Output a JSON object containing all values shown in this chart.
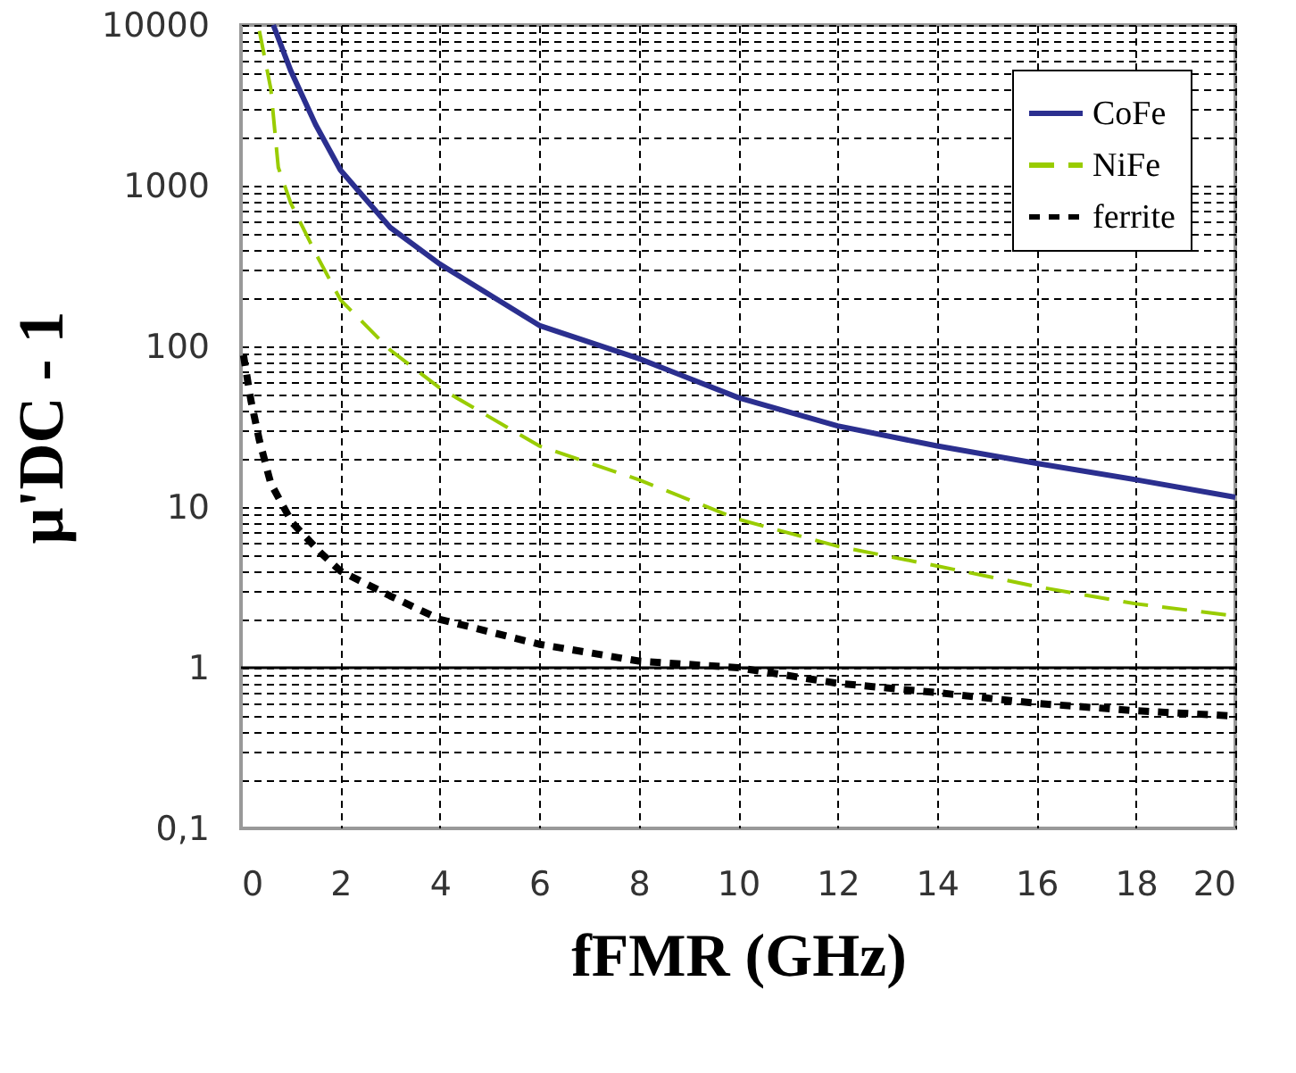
{
  "chart_data": {
    "type": "line",
    "xlabel": "fFMR (GHz)",
    "ylabel": "μ'DC - 1",
    "log": "y",
    "grid": true,
    "legend": "top right",
    "marker": "none",
    "xlim": [
      0,
      20
    ],
    "xticks": [
      0,
      2,
      4,
      6,
      8,
      10,
      12,
      14,
      16,
      18,
      20
    ],
    "ylim": [
      0.1,
      10000
    ],
    "yticks": [
      {
        "value": 0.1,
        "label": "0,1"
      },
      {
        "value": 0.2,
        "label": null
      },
      {
        "value": 0.3,
        "label": null
      },
      {
        "value": 0.4,
        "label": null
      },
      {
        "value": 0.5,
        "label": null
      },
      {
        "value": 0.6,
        "label": null
      },
      {
        "value": 0.7,
        "label": null
      },
      {
        "value": 0.8,
        "label": null
      },
      {
        "value": 0.9,
        "label": null
      },
      1,
      {
        "value": 2,
        "label": null
      },
      {
        "value": 3,
        "label": null
      },
      {
        "value": 4,
        "label": null
      },
      {
        "value": 5,
        "label": null
      },
      {
        "value": 6,
        "label": null
      },
      {
        "value": 7,
        "label": null
      },
      {
        "value": 8,
        "label": null
      },
      {
        "value": 9,
        "label": null
      },
      10,
      {
        "value": 20,
        "label": null
      },
      {
        "value": 30,
        "label": null
      },
      {
        "value": 40,
        "label": null
      },
      {
        "value": 50,
        "label": null
      },
      {
        "value": 60,
        "label": null
      },
      {
        "value": 70,
        "label": null
      },
      {
        "value": 80,
        "label": null
      },
      {
        "value": 90,
        "label": null
      },
      100,
      {
        "value": 200,
        "label": null
      },
      {
        "value": 300,
        "label": null
      },
      {
        "value": 400,
        "label": null
      },
      {
        "value": 500,
        "label": null
      },
      {
        "value": 600,
        "label": null
      },
      {
        "value": 700,
        "label": null
      },
      {
        "value": 800,
        "label": null
      },
      {
        "value": 900,
        "label": null
      },
      1000,
      {
        "value": 2000,
        "label": null
      },
      {
        "value": 3000,
        "label": null
      },
      {
        "value": 4000,
        "label": null
      },
      {
        "value": 5000,
        "label": null
      },
      {
        "value": 6000,
        "label": null
      },
      {
        "value": 7000,
        "label": null
      },
      {
        "value": 8000,
        "label": null
      },
      {
        "value": 9000,
        "label": null
      },
      10000
    ],
    "ref_lines": [
      {
        "axis": "y",
        "value": 1,
        "color": "#000000",
        "line_style": "solid"
      }
    ],
    "series": [
      {
        "name": "CoFe",
        "color": "#2b2f8f",
        "line_style": "solid",
        "x": [
          0.65,
          1,
          1.5,
          2,
          3,
          4,
          6,
          8,
          10,
          12,
          14,
          16,
          18,
          20
        ],
        "values": [
          10000,
          5200,
          2400,
          1250,
          550,
          325,
          135,
          84,
          48,
          32,
          24,
          18.7,
          14.8,
          11.5
        ]
      },
      {
        "name": "NiFe",
        "color": "#99cc00",
        "line_style": "dashed",
        "x": [
          0.37,
          0.6,
          0.75,
          1,
          1.5,
          2,
          3,
          4,
          6,
          8,
          10,
          12,
          14,
          16,
          18,
          20
        ],
        "values": [
          9200,
          4000,
          1300,
          780,
          380,
          195,
          95,
          55,
          24,
          14.8,
          8.4,
          5.7,
          4.3,
          3.2,
          2.5,
          2.1
        ]
      },
      {
        "name": "ferrite",
        "color": "#000000",
        "line_style": "dotted",
        "x": [
          0.05,
          0.2,
          0.37,
          0.6,
          1.03,
          1.6,
          2,
          3,
          4,
          6,
          8,
          10,
          12,
          14,
          16,
          18,
          20
        ],
        "values": [
          88,
          46,
          26,
          14,
          8,
          5.2,
          4,
          2.8,
          2,
          1.4,
          1.1,
          1,
          0.8,
          0.7,
          0.6,
          0.54,
          0.5
        ]
      }
    ]
  }
}
